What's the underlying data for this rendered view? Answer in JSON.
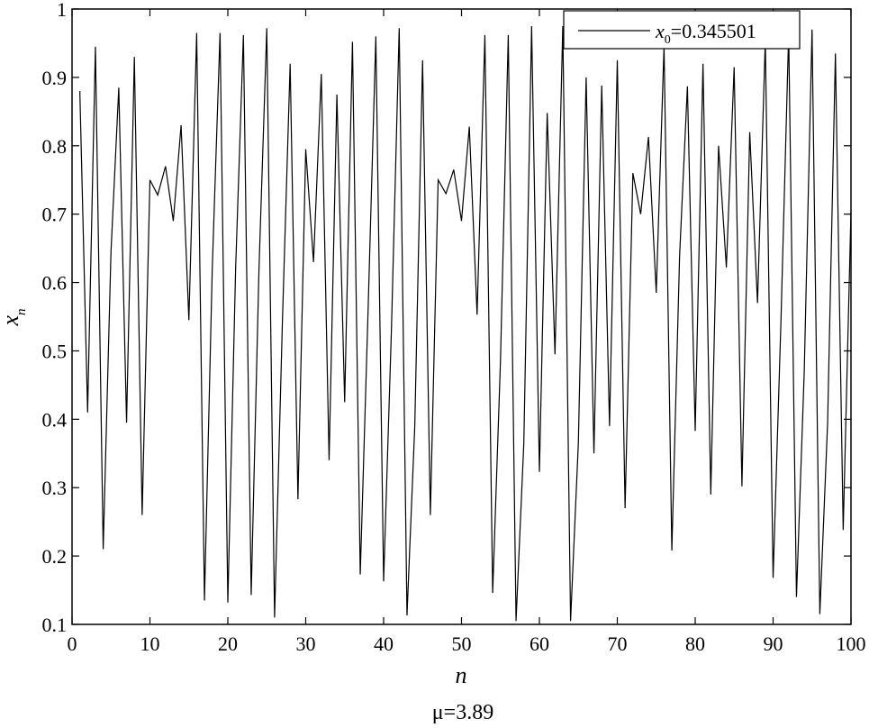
{
  "chart_data": {
    "type": "line",
    "x": [
      1,
      2,
      3,
      4,
      5,
      6,
      7,
      8,
      9,
      10,
      11,
      12,
      13,
      14,
      15,
      16,
      17,
      18,
      19,
      20,
      21,
      22,
      23,
      24,
      25,
      26,
      27,
      28,
      29,
      30,
      31,
      32,
      33,
      34,
      35,
      36,
      37,
      38,
      39,
      40,
      41,
      42,
      43,
      44,
      45,
      46,
      47,
      48,
      49,
      50,
      51,
      52,
      53,
      54,
      55,
      56,
      57,
      58,
      59,
      60,
      61,
      62,
      63,
      64,
      65,
      66,
      67,
      68,
      69,
      70,
      71,
      72,
      73,
      74,
      75,
      76,
      77,
      78,
      79,
      80,
      81,
      82,
      83,
      84,
      85,
      86,
      87,
      88,
      89,
      90,
      91,
      92,
      93,
      94,
      95,
      96,
      97,
      98,
      99,
      100
    ],
    "series": [
      {
        "name": "0.345501",
        "values": [
          0.88,
          0.41,
          0.945,
          0.21,
          0.645,
          0.885,
          0.395,
          0.93,
          0.26,
          0.75,
          0.728,
          0.77,
          0.69,
          0.83,
          0.545,
          0.965,
          0.135,
          0.62,
          0.965,
          0.132,
          0.62,
          0.962,
          0.143,
          0.62,
          0.972,
          0.11,
          0.54,
          0.92,
          0.283,
          0.795,
          0.63,
          0.905,
          0.34,
          0.875,
          0.425,
          0.952,
          0.173,
          0.557,
          0.96,
          0.163,
          0.53,
          0.972,
          0.113,
          0.39,
          0.925,
          0.26,
          0.75,
          0.73,
          0.765,
          0.69,
          0.828,
          0.553,
          0.962,
          0.146,
          0.485,
          0.962,
          0.105,
          0.365,
          0.975,
          0.323,
          0.848,
          0.495,
          0.975,
          0.105,
          0.365,
          0.9,
          0.35,
          0.888,
          0.39,
          0.925,
          0.27,
          0.76,
          0.7,
          0.813,
          0.585,
          0.946,
          0.208,
          0.64,
          0.887,
          0.383,
          0.92,
          0.29,
          0.8,
          0.622,
          0.915,
          0.302,
          0.82,
          0.57,
          0.955,
          0.168,
          0.54,
          0.965,
          0.14,
          0.47,
          0.97,
          0.115,
          0.395,
          0.935,
          0.238,
          0.705
        ]
      }
    ],
    "xlabel": "n",
    "ylabel": "x",
    "ylabel_sub": "n",
    "legend_var": "x",
    "legend_sub": "0",
    "legend_eq": "=",
    "caption": "μ=3.89",
    "xlim": [
      0,
      100
    ],
    "ylim": [
      0.1,
      1
    ],
    "xticks": [
      0,
      10,
      20,
      30,
      40,
      50,
      60,
      70,
      80,
      90,
      100
    ],
    "xtick_labels": [
      "0",
      "10",
      "20",
      "30",
      "40",
      "50",
      "60",
      "70",
      "80",
      "90",
      "100"
    ],
    "yticks": [
      0.1,
      0.2,
      0.3,
      0.4,
      0.5,
      0.6,
      0.7,
      0.8,
      0.9,
      1
    ],
    "ytick_labels": [
      "0.1",
      "0.2",
      "0.3",
      "0.4",
      "0.5",
      "0.6",
      "0.7",
      "0.8",
      "0.9",
      "1"
    ],
    "grid": false,
    "legend_position": "top-right",
    "line_color": "#000000"
  }
}
